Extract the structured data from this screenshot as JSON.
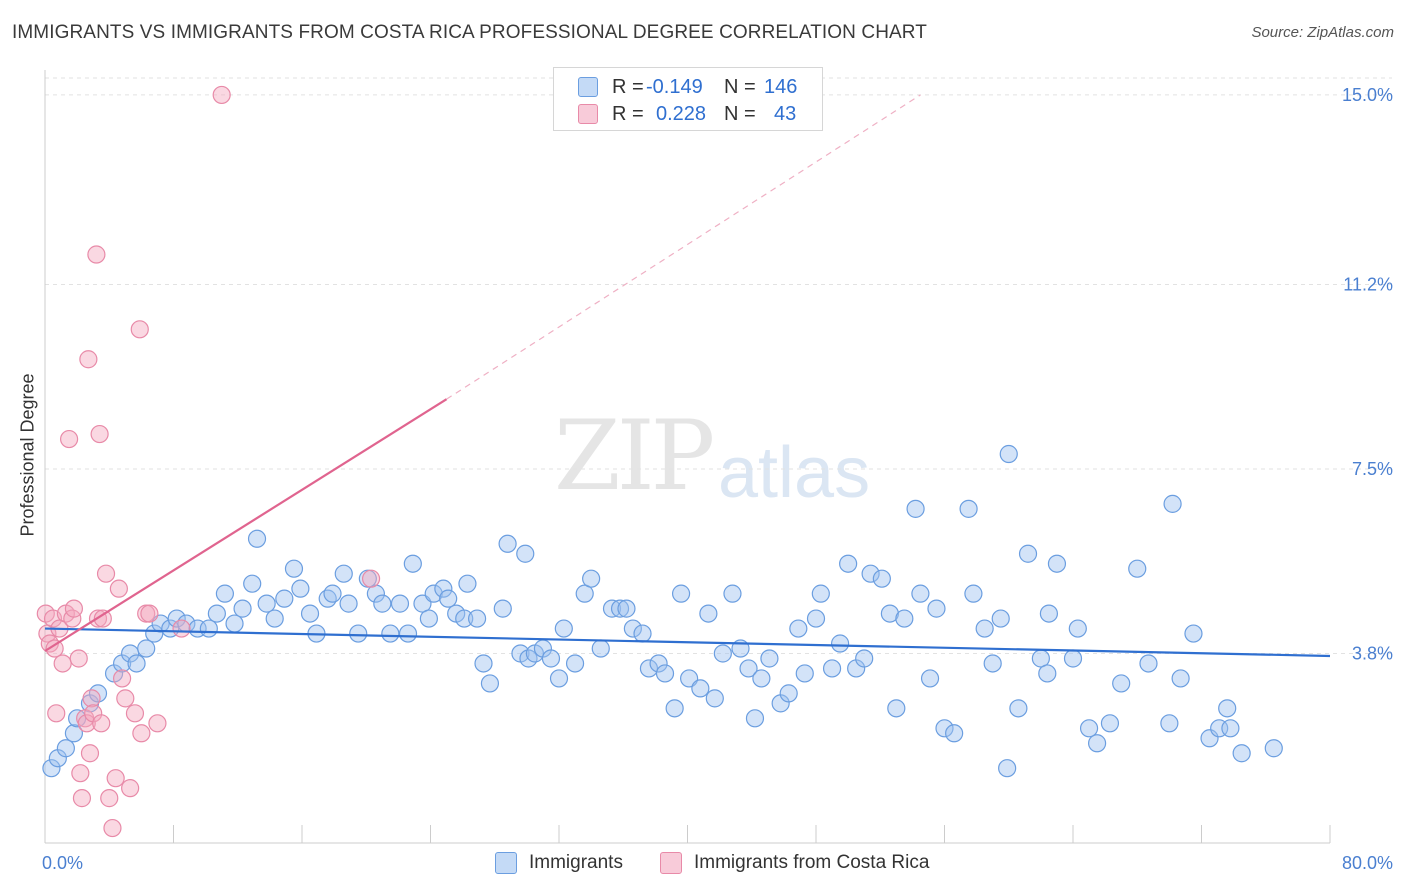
{
  "title": "IMMIGRANTS VS IMMIGRANTS FROM COSTA RICA PROFESSIONAL DEGREE CORRELATION CHART",
  "source": "Source: ZipAtlas.com",
  "watermark": {
    "zip": "ZIP",
    "atlas": "atlas"
  },
  "legend": {
    "r_label": "R =",
    "n_label": "N =",
    "rows": [
      {
        "r": "-0.149",
        "n": "146",
        "color": "#9dc2f0"
      },
      {
        "r": "0.228",
        "n": "43",
        "color": "#f4a9bf"
      }
    ]
  },
  "chart_data": {
    "type": "scatter",
    "title": "IMMIGRANTS VS IMMIGRANTS FROM COSTA RICA PROFESSIONAL DEGREE CORRELATION CHART",
    "xlabel": "",
    "ylabel": "Professional Degree",
    "xlim": [
      0,
      80
    ],
    "ylim": [
      0,
      15.5
    ],
    "x_tick_labels": [
      "0.0%",
      "80.0%"
    ],
    "y_ticks": [
      3.8,
      7.5,
      11.2,
      15.0
    ],
    "y_tick_labels": [
      "3.8%",
      "7.5%",
      "11.2%",
      "15.0%"
    ],
    "grid": "horizontal dashed",
    "legend_position": "top-center",
    "series": [
      {
        "name": "Immigrants",
        "color": "#9dc2f0",
        "stroke": "#6b9ee0",
        "trend": {
          "x": [
            0,
            80
          ],
          "y": [
            4.3,
            3.75
          ],
          "color": "#2f6fd0"
        },
        "points": [
          [
            0.4,
            1.5
          ],
          [
            0.8,
            1.7
          ],
          [
            1.3,
            1.9
          ],
          [
            1.8,
            2.2
          ],
          [
            2.0,
            2.5
          ],
          [
            2.8,
            2.8
          ],
          [
            3.3,
            3.0
          ],
          [
            4.3,
            3.4
          ],
          [
            4.8,
            3.6
          ],
          [
            5.3,
            3.8
          ],
          [
            5.7,
            3.6
          ],
          [
            6.3,
            3.9
          ],
          [
            6.8,
            4.2
          ],
          [
            7.2,
            4.4
          ],
          [
            7.8,
            4.3
          ],
          [
            8.2,
            4.5
          ],
          [
            8.8,
            4.4
          ],
          [
            9.5,
            4.3
          ],
          [
            10.2,
            4.3
          ],
          [
            10.7,
            4.6
          ],
          [
            11.2,
            5.0
          ],
          [
            11.8,
            4.4
          ],
          [
            12.3,
            4.7
          ],
          [
            12.9,
            5.2
          ],
          [
            13.2,
            6.1
          ],
          [
            13.8,
            4.8
          ],
          [
            14.3,
            4.5
          ],
          [
            14.9,
            4.9
          ],
          [
            15.5,
            5.5
          ],
          [
            15.9,
            5.1
          ],
          [
            16.5,
            4.6
          ],
          [
            16.9,
            4.2
          ],
          [
            17.6,
            4.9
          ],
          [
            17.9,
            5.0
          ],
          [
            18.6,
            5.4
          ],
          [
            18.9,
            4.8
          ],
          [
            19.5,
            4.2
          ],
          [
            20.1,
            5.3
          ],
          [
            20.6,
            5.0
          ],
          [
            21.0,
            4.8
          ],
          [
            21.5,
            4.2
          ],
          [
            22.1,
            4.8
          ],
          [
            22.6,
            4.2
          ],
          [
            22.9,
            5.6
          ],
          [
            23.5,
            4.8
          ],
          [
            23.9,
            4.5
          ],
          [
            24.2,
            5.0
          ],
          [
            24.8,
            5.1
          ],
          [
            25.1,
            4.9
          ],
          [
            25.6,
            4.6
          ],
          [
            26.1,
            4.5
          ],
          [
            26.3,
            5.2
          ],
          [
            26.9,
            4.5
          ],
          [
            27.3,
            3.6
          ],
          [
            27.7,
            3.2
          ],
          [
            28.5,
            4.7
          ],
          [
            28.8,
            6.0
          ],
          [
            29.9,
            5.8
          ],
          [
            29.6,
            3.8
          ],
          [
            30.1,
            3.7
          ],
          [
            30.5,
            3.8
          ],
          [
            31.0,
            3.9
          ],
          [
            31.5,
            3.7
          ],
          [
            32.0,
            3.3
          ],
          [
            32.3,
            4.3
          ],
          [
            33.0,
            3.6
          ],
          [
            33.6,
            5.0
          ],
          [
            34.0,
            5.3
          ],
          [
            34.6,
            3.9
          ],
          [
            35.3,
            4.7
          ],
          [
            35.8,
            4.7
          ],
          [
            36.2,
            4.7
          ],
          [
            36.6,
            4.3
          ],
          [
            37.2,
            4.2
          ],
          [
            37.6,
            3.5
          ],
          [
            38.2,
            3.6
          ],
          [
            38.6,
            3.4
          ],
          [
            39.2,
            2.7
          ],
          [
            39.6,
            5.0
          ],
          [
            40.1,
            3.3
          ],
          [
            40.8,
            3.1
          ],
          [
            41.3,
            4.6
          ],
          [
            41.7,
            2.9
          ],
          [
            42.2,
            3.8
          ],
          [
            42.8,
            5.0
          ],
          [
            43.3,
            3.9
          ],
          [
            43.8,
            3.5
          ],
          [
            44.2,
            2.5
          ],
          [
            44.6,
            3.3
          ],
          [
            45.1,
            3.7
          ],
          [
            45.8,
            2.8
          ],
          [
            46.3,
            3.0
          ],
          [
            46.9,
            4.3
          ],
          [
            47.3,
            3.4
          ],
          [
            48.0,
            4.5
          ],
          [
            48.3,
            5.0
          ],
          [
            49.0,
            3.5
          ],
          [
            49.5,
            4.0
          ],
          [
            50.0,
            5.6
          ],
          [
            50.5,
            3.5
          ],
          [
            51.0,
            3.7
          ],
          [
            51.4,
            5.4
          ],
          [
            52.1,
            5.3
          ],
          [
            52.6,
            4.6
          ],
          [
            53.0,
            2.7
          ],
          [
            53.5,
            4.5
          ],
          [
            54.2,
            6.7
          ],
          [
            54.5,
            5.0
          ],
          [
            55.1,
            3.3
          ],
          [
            55.5,
            4.7
          ],
          [
            56.0,
            2.3
          ],
          [
            56.6,
            2.2
          ],
          [
            57.5,
            6.7
          ],
          [
            57.8,
            5.0
          ],
          [
            58.5,
            4.3
          ],
          [
            59.0,
            3.6
          ],
          [
            59.5,
            4.5
          ],
          [
            59.9,
            1.5
          ],
          [
            60.0,
            7.8
          ],
          [
            60.6,
            2.7
          ],
          [
            61.2,
            5.8
          ],
          [
            62.0,
            3.7
          ],
          [
            62.4,
            3.4
          ],
          [
            62.5,
            4.6
          ],
          [
            63.0,
            5.6
          ],
          [
            64.0,
            3.7
          ],
          [
            64.3,
            4.3
          ],
          [
            65.0,
            2.3
          ],
          [
            65.5,
            2.0
          ],
          [
            66.3,
            2.4
          ],
          [
            67.0,
            3.2
          ],
          [
            68.0,
            5.5
          ],
          [
            68.7,
            3.6
          ],
          [
            70.0,
            2.4
          ],
          [
            70.2,
            6.8
          ],
          [
            70.7,
            3.3
          ],
          [
            71.5,
            4.2
          ],
          [
            72.5,
            2.1
          ],
          [
            73.1,
            2.3
          ],
          [
            73.6,
            2.7
          ],
          [
            73.8,
            2.3
          ],
          [
            74.5,
            1.8
          ],
          [
            76.5,
            1.9
          ]
        ]
      },
      {
        "name": "Immigrants from Costa Rica",
        "color": "#f4a9bf",
        "stroke": "#e88aa8",
        "trend": {
          "x": [
            0,
            25
          ],
          "y": [
            3.85,
            8.9
          ],
          "color": "#e0648f",
          "dashed_extension": {
            "x": [
              25,
              54.5
            ],
            "y": [
              8.9,
              15.0
            ]
          }
        },
        "points": [
          [
            0.05,
            4.6
          ],
          [
            0.15,
            4.2
          ],
          [
            0.3,
            4.0
          ],
          [
            0.5,
            4.5
          ],
          [
            0.6,
            3.9
          ],
          [
            0.7,
            2.6
          ],
          [
            0.9,
            4.3
          ],
          [
            1.1,
            3.6
          ],
          [
            1.3,
            4.6
          ],
          [
            1.5,
            8.1
          ],
          [
            1.7,
            4.5
          ],
          [
            1.8,
            4.7
          ],
          [
            2.1,
            3.7
          ],
          [
            2.2,
            1.4
          ],
          [
            2.3,
            0.9
          ],
          [
            2.5,
            2.5
          ],
          [
            2.6,
            2.4
          ],
          [
            2.7,
            9.7
          ],
          [
            2.8,
            1.8
          ],
          [
            2.9,
            2.9
          ],
          [
            3.0,
            2.6
          ],
          [
            3.2,
            11.8
          ],
          [
            3.3,
            4.5
          ],
          [
            3.4,
            8.2
          ],
          [
            3.5,
            2.4
          ],
          [
            3.6,
            4.5
          ],
          [
            3.8,
            5.4
          ],
          [
            4.0,
            0.9
          ],
          [
            4.2,
            0.3
          ],
          [
            4.4,
            1.3
          ],
          [
            4.6,
            5.1
          ],
          [
            4.8,
            3.3
          ],
          [
            5.0,
            2.9
          ],
          [
            5.3,
            1.1
          ],
          [
            5.6,
            2.6
          ],
          [
            5.9,
            10.3
          ],
          [
            6.0,
            2.2
          ],
          [
            6.3,
            4.6
          ],
          [
            6.5,
            4.6
          ],
          [
            7.0,
            2.4
          ],
          [
            8.5,
            4.3
          ],
          [
            11.0,
            15.0
          ],
          [
            20.3,
            5.3
          ]
        ]
      }
    ]
  },
  "bottom_legend": [
    {
      "label": "Immigrants",
      "color": "#9dc2f0"
    },
    {
      "label": "Immigrants from Costa Rica",
      "color": "#f4a9bf"
    }
  ]
}
